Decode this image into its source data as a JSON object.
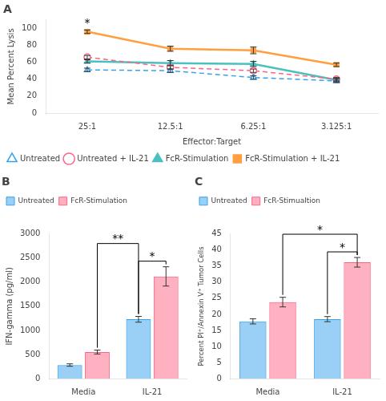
{
  "chart_data": [
    {
      "type": "line",
      "title": "A",
      "xlabel": "Effector:Target",
      "ylabel": "Mean Percent Lysis",
      "categories": [
        "25:1",
        "12.5:1",
        "6.25:1",
        "3.125:1"
      ],
      "series": [
        {
          "name": "Untreated",
          "values": [
            51,
            50,
            42,
            38
          ],
          "errors": [
            2,
            2,
            2,
            2
          ],
          "marker": "triangle-open",
          "line_style": "dashed"
        },
        {
          "name": "Untreated + IL-21",
          "values": [
            66,
            54,
            50,
            40
          ],
          "errors": [
            2,
            2,
            2,
            2
          ],
          "marker": "circle-open",
          "line_style": "dashed"
        },
        {
          "name": "FcR-Stimulation",
          "values": [
            61,
            59,
            58,
            39
          ],
          "errors": [
            2,
            3,
            3,
            2
          ],
          "marker": "triangle",
          "line_style": "solid"
        },
        {
          "name": "FcR-Stimulation + IL-21",
          "values": [
            96,
            76,
            74,
            57
          ],
          "errors": [
            2,
            3,
            4,
            2
          ],
          "marker": "square",
          "line_style": "solid"
        }
      ],
      "ylim": [
        0,
        110
      ],
      "yticks": [
        0,
        20,
        40,
        60,
        80,
        100
      ],
      "grid": false,
      "legend": "lower left",
      "annotations": [
        {
          "text": "*",
          "category": "25:1",
          "series": "FcR-Stimulation + IL-21"
        }
      ]
    },
    {
      "type": "bar",
      "title": "B",
      "ylabel": "IFN-gamma (pg/ml)",
      "categories": [
        "Media",
        "IL-21"
      ],
      "series": [
        {
          "name": "Untreated",
          "values": [
            280,
            1230
          ],
          "errors": [
            25,
            60
          ]
        },
        {
          "name": "FcR-Stimulation",
          "values": [
            550,
            2120
          ],
          "errors": [
            40,
            200
          ]
        }
      ],
      "ylim": [
        0,
        3000
      ],
      "yticks": [
        0,
        500,
        1000,
        1500,
        2000,
        2500,
        3000
      ],
      "grid": false,
      "legend": "upper left",
      "annotations": [
        {
          "text": "*",
          "from": {
            "category": "IL-21",
            "series": "Untreated"
          },
          "to": {
            "category": "IL-21",
            "series": "FcR-Stimulation"
          }
        },
        {
          "text": "**",
          "from": {
            "category": "Media",
            "series": "FcR-Stimulation"
          },
          "to": {
            "category": "IL-21",
            "series": "Untreated"
          }
        }
      ]
    },
    {
      "type": "bar",
      "title": "C",
      "ylabel": "Percent PI⁺/Annexin V⁺ Tumor Cells",
      "categories": [
        "Media",
        "IL-21"
      ],
      "series": [
        {
          "name": "Untreated",
          "values": [
            17.8,
            18.5
          ],
          "errors": [
            0.8,
            0.8
          ]
        },
        {
          "name": "FcR-Stimualtion",
          "values": [
            23.8,
            36.2
          ],
          "errors": [
            1.5,
            1.5
          ]
        }
      ],
      "ylim": [
        0,
        45
      ],
      "yticks": [
        0,
        5,
        10,
        15,
        20,
        25,
        30,
        35,
        40,
        45
      ],
      "grid": false,
      "legend": "upper left",
      "annotations": [
        {
          "text": "*",
          "from": {
            "category": "IL-21",
            "series": "Untreated"
          },
          "to": {
            "category": "IL-21",
            "series": "FcR-Stimualtion"
          }
        },
        {
          "text": "*",
          "from": {
            "category": "Media",
            "series": "FcR-Stimualtion"
          },
          "to": {
            "category": "IL-21",
            "series": "FcR-Stimualtion"
          }
        }
      ]
    }
  ]
}
